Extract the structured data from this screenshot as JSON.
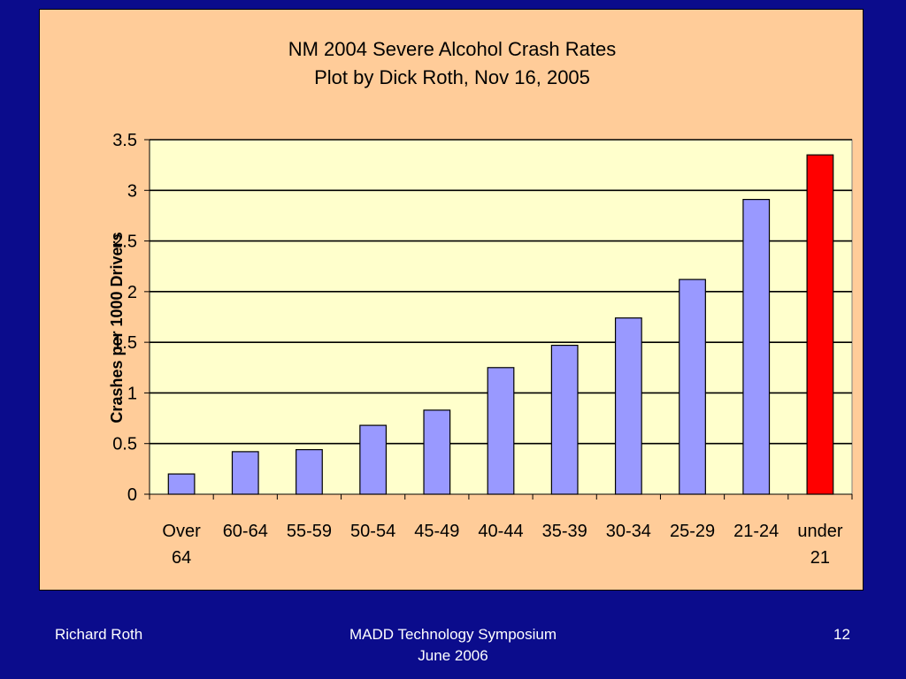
{
  "slide": {
    "footer_left": "Richard Roth",
    "footer_center_line1": "MADD Technology Symposium",
    "footer_center_line2": "June 2006",
    "page_number": "12",
    "background_color": "#0b0c8c",
    "panel_color": "#ffcc99"
  },
  "chart_data": {
    "type": "bar",
    "title": "NM 2004 Severe Alcohol Crash Rates",
    "subtitle": "Plot by Dick Roth, Nov 16, 2005",
    "xlabel": "",
    "ylabel": "Crashes per 1000 Drivers",
    "categories": [
      [
        "Over",
        "64"
      ],
      [
        "60-64"
      ],
      [
        "55-59"
      ],
      [
        "50-54"
      ],
      [
        "45-49"
      ],
      [
        "40-44"
      ],
      [
        "35-39"
      ],
      [
        "30-34"
      ],
      [
        "25-29"
      ],
      [
        "21-24"
      ],
      [
        "under",
        "21"
      ]
    ],
    "values": [
      0.2,
      0.42,
      0.44,
      0.68,
      0.83,
      1.25,
      1.47,
      1.74,
      2.12,
      2.91,
      3.35
    ],
    "highlight": {
      "index": 10,
      "color": "#ff0000"
    },
    "bar_color": "#9999ff",
    "plot_background": "#ffffcc",
    "ylim": [
      0,
      3.5
    ],
    "yticks": [
      0,
      0.5,
      1,
      1.5,
      2,
      2.5,
      3,
      3.5
    ],
    "ytick_labels": [
      "0",
      "0.5",
      "1",
      "1.5",
      "2",
      "2.5",
      "3",
      "3.5"
    ],
    "grid": true,
    "legend": "none"
  }
}
